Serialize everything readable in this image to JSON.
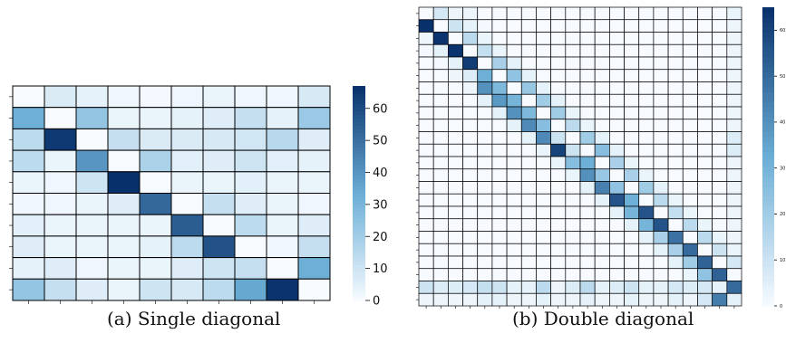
{
  "captions": {
    "a": "(a) Single diagonal",
    "b": "(b) Double diagonal"
  },
  "colormap": {
    "low": "#f7fbff",
    "mid": "#6baed6",
    "high": "#08306b"
  },
  "chart_data": [
    {
      "type": "heatmap",
      "title": "",
      "xlabel": "",
      "ylabel": "",
      "grid": true,
      "colorbar": {
        "min": 0,
        "max": 67,
        "ticks": [
          0,
          10,
          20,
          30,
          40,
          50,
          60
        ]
      },
      "matrix": [
        [
          0,
          7,
          4,
          2,
          1,
          2,
          3,
          2,
          2,
          8
        ],
        [
          33,
          0,
          24,
          3,
          3,
          4,
          6,
          12,
          4,
          22
        ],
        [
          14,
          65,
          0,
          12,
          7,
          7,
          8,
          9,
          15,
          6
        ],
        [
          14,
          3,
          40,
          0,
          18,
          5,
          6,
          10,
          5,
          4
        ],
        [
          3,
          2,
          10,
          67,
          0,
          3,
          3,
          5,
          3,
          3
        ],
        [
          2,
          2,
          3,
          6,
          52,
          0,
          12,
          6,
          3,
          2
        ],
        [
          5,
          3,
          3,
          3,
          3,
          55,
          0,
          14,
          3,
          6
        ],
        [
          6,
          3,
          3,
          3,
          4,
          14,
          58,
          0,
          2,
          12
        ],
        [
          4,
          6,
          2,
          3,
          3,
          6,
          10,
          12,
          0,
          33
        ],
        [
          24,
          12,
          6,
          3,
          10,
          8,
          14,
          35,
          66,
          0
        ]
      ]
    },
    {
      "type": "heatmap",
      "title": "",
      "xlabel": "",
      "ylabel": "",
      "grid": true,
      "colorbar": {
        "min": 0,
        "max": 65,
        "ticks": [
          0,
          10,
          20,
          30,
          40,
          50,
          60
        ]
      },
      "matrix": [
        [
          0,
          8,
          2,
          2,
          0,
          0,
          0,
          0,
          0,
          0,
          0,
          0,
          0,
          0,
          0,
          0,
          0,
          0,
          0,
          0,
          0,
          3
        ],
        [
          65,
          0,
          10,
          4,
          1,
          0,
          0,
          0,
          0,
          0,
          0,
          0,
          0,
          0,
          0,
          0,
          0,
          0,
          0,
          0,
          0,
          2
        ],
        [
          2,
          64,
          0,
          14,
          3,
          0,
          0,
          0,
          0,
          0,
          0,
          0,
          0,
          0,
          0,
          0,
          0,
          0,
          0,
          0,
          0,
          2
        ],
        [
          1,
          4,
          64,
          0,
          12,
          3,
          0,
          0,
          0,
          0,
          0,
          0,
          0,
          0,
          0,
          0,
          0,
          0,
          0,
          0,
          0,
          2
        ],
        [
          0,
          1,
          4,
          62,
          0,
          18,
          4,
          0,
          0,
          0,
          0,
          0,
          0,
          0,
          0,
          0,
          0,
          0,
          0,
          0,
          0,
          2
        ],
        [
          0,
          0,
          2,
          6,
          32,
          0,
          24,
          4,
          0,
          0,
          0,
          0,
          0,
          0,
          0,
          0,
          0,
          0,
          0,
          0,
          0,
          2
        ],
        [
          0,
          0,
          0,
          2,
          40,
          28,
          0,
          22,
          4,
          0,
          0,
          0,
          0,
          0,
          0,
          0,
          0,
          0,
          0,
          0,
          0,
          2
        ],
        [
          0,
          0,
          0,
          0,
          4,
          38,
          30,
          0,
          20,
          4,
          0,
          0,
          0,
          0,
          0,
          0,
          0,
          0,
          0,
          0,
          0,
          2
        ],
        [
          0,
          0,
          0,
          0,
          0,
          4,
          40,
          28,
          0,
          20,
          3,
          0,
          0,
          0,
          0,
          0,
          0,
          0,
          0,
          0,
          0,
          2
        ],
        [
          0,
          0,
          0,
          0,
          0,
          0,
          4,
          42,
          26,
          0,
          14,
          3,
          0,
          0,
          0,
          0,
          0,
          0,
          0,
          0,
          0,
          2
        ],
        [
          0,
          0,
          0,
          0,
          0,
          0,
          0,
          4,
          42,
          10,
          0,
          20,
          4,
          0,
          0,
          0,
          0,
          0,
          0,
          0,
          0,
          6
        ],
        [
          0,
          0,
          0,
          0,
          0,
          0,
          0,
          0,
          3,
          60,
          10,
          0,
          26,
          4,
          0,
          0,
          0,
          0,
          0,
          0,
          0,
          6
        ],
        [
          0,
          0,
          0,
          0,
          0,
          0,
          0,
          0,
          0,
          3,
          26,
          32,
          0,
          18,
          3,
          0,
          0,
          0,
          0,
          0,
          0,
          2
        ],
        [
          0,
          0,
          0,
          0,
          0,
          0,
          0,
          0,
          0,
          0,
          3,
          40,
          22,
          0,
          18,
          3,
          0,
          0,
          0,
          0,
          0,
          2
        ],
        [
          0,
          0,
          0,
          0,
          0,
          0,
          0,
          0,
          0,
          0,
          0,
          4,
          44,
          24,
          0,
          20,
          4,
          0,
          0,
          0,
          0,
          2
        ],
        [
          0,
          0,
          0,
          0,
          0,
          0,
          0,
          0,
          0,
          0,
          0,
          0,
          4,
          56,
          32,
          0,
          14,
          3,
          0,
          0,
          0,
          2
        ],
        [
          0,
          0,
          0,
          0,
          0,
          0,
          0,
          0,
          0,
          0,
          0,
          0,
          0,
          4,
          30,
          56,
          0,
          12,
          3,
          0,
          0,
          2
        ],
        [
          0,
          0,
          0,
          0,
          0,
          0,
          0,
          0,
          0,
          0,
          0,
          0,
          0,
          0,
          4,
          30,
          56,
          0,
          14,
          3,
          0,
          2
        ],
        [
          0,
          0,
          0,
          0,
          0,
          0,
          0,
          0,
          0,
          0,
          0,
          0,
          0,
          0,
          0,
          4,
          18,
          48,
          0,
          14,
          3,
          2
        ],
        [
          0,
          0,
          0,
          0,
          0,
          0,
          0,
          0,
          0,
          0,
          0,
          0,
          0,
          0,
          0,
          0,
          4,
          18,
          50,
          0,
          10,
          3
        ],
        [
          0,
          0,
          0,
          0,
          0,
          0,
          0,
          0,
          0,
          0,
          0,
          0,
          0,
          0,
          0,
          0,
          0,
          4,
          20,
          52,
          0,
          8
        ],
        [
          0,
          0,
          0,
          0,
          0,
          0,
          0,
          0,
          0,
          0,
          0,
          0,
          0,
          0,
          0,
          0,
          0,
          0,
          3,
          24,
          52,
          0
        ],
        [
          10,
          6,
          6,
          8,
          12,
          10,
          4,
          4,
          14,
          2,
          6,
          14,
          4,
          6,
          10,
          4,
          4,
          8,
          6,
          8,
          4,
          50
        ],
        [
          2,
          2,
          2,
          2,
          4,
          4,
          2,
          2,
          4,
          2,
          2,
          4,
          2,
          2,
          4,
          2,
          2,
          4,
          2,
          8,
          45,
          4
        ]
      ]
    }
  ]
}
